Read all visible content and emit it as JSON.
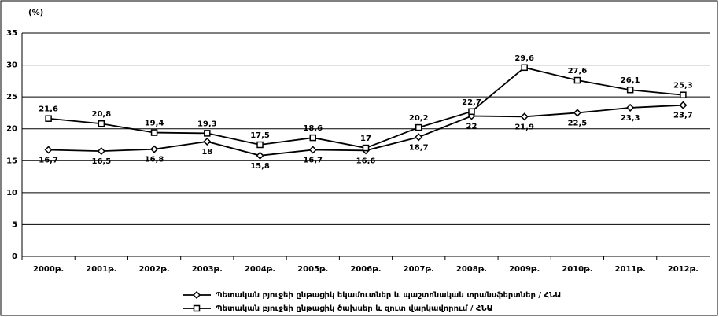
{
  "chart_data": {
    "type": "line",
    "y_label": "(%)",
    "categories": [
      "2000թ.",
      "2001թ.",
      "2002թ.",
      "2003թ.",
      "2004թ.",
      "2005թ.",
      "2006թ.",
      "2007թ.",
      "2008թ.",
      "2009թ.",
      "2010թ.",
      "2011թ.",
      "2012թ."
    ],
    "series": [
      {
        "name": "Պետական բյուջեի ընթացիկ եկամուտներ և պաշտոնական տրանսֆերտներ / ՀՆԱ",
        "color": "#000000",
        "marker": "diamond",
        "values": [
          16.7,
          16.5,
          16.8,
          18,
          15.8,
          16.7,
          16.6,
          18.7,
          22,
          21.9,
          22.5,
          23.3,
          23.7
        ],
        "value_labels": [
          "16,7",
          "16,5",
          "16,8",
          "18",
          "15,8",
          "16,7",
          "16,6",
          "18,7",
          "22",
          "21,9",
          "22,5",
          "23,3",
          "23,7"
        ]
      },
      {
        "name": "Պետական բյուջեի ընթացիկ ծախսեր և զուտ վարկավորում / ՀՆԱ",
        "color": "#000000",
        "marker": "square",
        "values": [
          21.6,
          20.8,
          19.4,
          19.3,
          17.5,
          18.6,
          17,
          20.2,
          22.7,
          29.6,
          27.6,
          26.1,
          25.3
        ],
        "value_labels": [
          "21,6",
          "20,8",
          "19,4",
          "19,3",
          "17,5",
          "18,6",
          "17",
          "20,2",
          "22,7",
          "29,6",
          "27,6",
          "26,1",
          "25,3"
        ]
      }
    ],
    "ylim": [
      0,
      35
    ],
    "yticks": [
      0,
      5,
      10,
      15,
      20,
      25,
      30,
      35
    ],
    "grid": true,
    "legend_position": "bottom"
  }
}
